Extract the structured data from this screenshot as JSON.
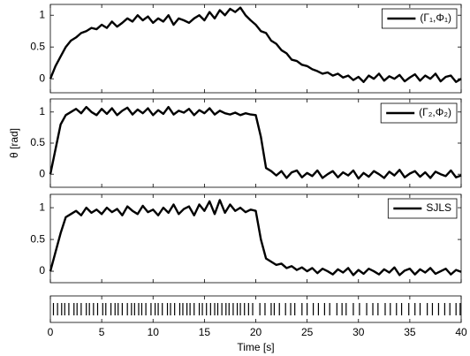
{
  "chart_data": [
    {
      "type": "line",
      "xlim": [
        0,
        40
      ],
      "ylim": [
        -0.22,
        1.17
      ],
      "yticks": [
        0,
        0.5,
        1
      ],
      "legend": "upper right",
      "x": [
        0,
        0.5,
        1,
        1.5,
        2,
        2.5,
        3,
        3.5,
        4,
        4.5,
        5,
        5.5,
        6,
        6.5,
        7,
        7.5,
        8,
        8.5,
        9,
        9.5,
        10,
        10.5,
        11,
        11.5,
        12,
        12.5,
        13,
        13.5,
        14,
        14.5,
        15,
        15.5,
        16,
        16.5,
        17,
        17.5,
        18,
        18.5,
        19,
        19.5,
        20,
        20.5,
        21,
        21.5,
        22,
        22.5,
        23,
        23.5,
        24,
        24.5,
        25,
        25.5,
        26,
        26.5,
        27,
        27.5,
        28,
        28.5,
        29,
        29.5,
        30,
        30.5,
        31,
        31.5,
        32,
        32.5,
        33,
        33.5,
        34,
        34.5,
        35,
        35.5,
        36,
        36.5,
        37,
        37.5,
        38,
        38.5,
        39,
        39.5,
        40
      ],
      "series": [
        {
          "name": "(Γ₁,Φ₁)",
          "color": "#000000",
          "values": [
            0,
            0.2,
            0.35,
            0.5,
            0.6,
            0.65,
            0.72,
            0.75,
            0.8,
            0.78,
            0.85,
            0.8,
            0.9,
            0.82,
            0.88,
            0.95,
            0.9,
            1.0,
            0.92,
            0.98,
            0.88,
            0.95,
            0.9,
            1.0,
            0.85,
            0.95,
            0.92,
            0.88,
            0.95,
            1.0,
            0.92,
            1.05,
            0.95,
            1.08,
            1.0,
            1.1,
            1.05,
            1.12,
            1.0,
            0.92,
            0.85,
            0.75,
            0.72,
            0.6,
            0.55,
            0.45,
            0.4,
            0.3,
            0.28,
            0.22,
            0.2,
            0.15,
            0.12,
            0.08,
            0.1,
            0.05,
            0.08,
            0.02,
            0.05,
            -0.02,
            0.03,
            -0.05,
            0.05,
            0.0,
            0.08,
            -0.03,
            0.04,
            0.0,
            0.06,
            -0.04,
            0.02,
            0.07,
            -0.03,
            0.05,
            0.0,
            0.08,
            -0.04,
            0.03,
            0.05,
            -0.05,
            0.0
          ]
        }
      ]
    },
    {
      "type": "line",
      "xlim": [
        0,
        40
      ],
      "ylim": [
        -0.21,
        1.21
      ],
      "yticks": [
        0,
        0.5,
        1
      ],
      "legend": "upper right",
      "ylabel": "θ [rad]",
      "x": [
        0,
        0.5,
        1,
        1.5,
        2,
        2.5,
        3,
        3.5,
        4,
        4.5,
        5,
        5.5,
        6,
        6.5,
        7,
        7.5,
        8,
        8.5,
        9,
        9.5,
        10,
        10.5,
        11,
        11.5,
        12,
        12.5,
        13,
        13.5,
        14,
        14.5,
        15,
        15.5,
        16,
        16.5,
        17,
        17.5,
        18,
        18.5,
        19,
        19.5,
        20,
        20.5,
        21,
        21.5,
        22,
        22.5,
        23,
        23.5,
        24,
        24.5,
        25,
        25.5,
        26,
        26.5,
        27,
        27.5,
        28,
        28.5,
        29,
        29.5,
        30,
        30.5,
        31,
        31.5,
        32,
        32.5,
        33,
        33.5,
        34,
        34.5,
        35,
        35.5,
        36,
        36.5,
        37,
        37.5,
        38,
        38.5,
        39,
        39.5,
        40
      ],
      "series": [
        {
          "name": "(Γ₂,Φ₂)",
          "color": "#000000",
          "values": [
            0,
            0.4,
            0.8,
            0.95,
            1.0,
            1.05,
            0.98,
            1.08,
            1.0,
            0.95,
            1.05,
            0.97,
            1.06,
            0.95,
            1.02,
            1.07,
            0.96,
            1.04,
            0.98,
            1.06,
            0.95,
            1.03,
            0.97,
            1.08,
            0.96,
            1.02,
            0.99,
            1.05,
            0.95,
            1.03,
            0.98,
            1.06,
            0.96,
            1.02,
            0.98,
            0.96,
            0.99,
            0.95,
            0.98,
            0.96,
            0.95,
            0.6,
            0.1,
            0.05,
            -0.02,
            0.05,
            -0.06,
            0.03,
            0.06,
            -0.05,
            0.02,
            -0.03,
            0.06,
            -0.06,
            0.0,
            0.05,
            -0.05,
            0.03,
            -0.02,
            0.06,
            -0.07,
            0.02,
            -0.04,
            0.05,
            0.0,
            -0.06,
            0.04,
            -0.02,
            0.07,
            -0.05,
            0.01,
            0.05,
            -0.04,
            0.03,
            -0.06,
            0.04,
            0.0,
            -0.03,
            0.06,
            -0.05,
            -0.02
          ]
        }
      ]
    },
    {
      "type": "line",
      "xlim": [
        0,
        40
      ],
      "ylim": [
        -0.18,
        1.21
      ],
      "yticks": [
        0,
        0.5,
        1
      ],
      "legend": "upper right",
      "x": [
        0,
        0.5,
        1,
        1.5,
        2,
        2.5,
        3,
        3.5,
        4,
        4.5,
        5,
        5.5,
        6,
        6.5,
        7,
        7.5,
        8,
        8.5,
        9,
        9.5,
        10,
        10.5,
        11,
        11.5,
        12,
        12.5,
        13,
        13.5,
        14,
        14.5,
        15,
        15.5,
        16,
        16.5,
        17,
        17.5,
        18,
        18.5,
        19,
        19.5,
        20,
        20.5,
        21,
        21.5,
        22,
        22.5,
        23,
        23.5,
        24,
        24.5,
        25,
        25.5,
        26,
        26.5,
        27,
        27.5,
        28,
        28.5,
        29,
        29.5,
        30,
        30.5,
        31,
        31.5,
        32,
        32.5,
        33,
        33.5,
        34,
        34.5,
        35,
        35.5,
        36,
        36.5,
        37,
        37.5,
        38,
        38.5,
        39,
        39.5,
        40
      ],
      "series": [
        {
          "name": "SJLS",
          "color": "#000000",
          "values": [
            0,
            0.3,
            0.6,
            0.85,
            0.9,
            0.95,
            0.88,
            1.0,
            0.92,
            0.97,
            0.9,
            1.0,
            0.93,
            0.98,
            0.88,
            1.02,
            0.95,
            0.9,
            1.03,
            0.93,
            0.97,
            0.88,
            1.0,
            0.92,
            1.05,
            0.9,
            0.98,
            1.02,
            0.88,
            1.05,
            0.95,
            1.1,
            0.9,
            1.12,
            0.92,
            1.05,
            0.95,
            1.0,
            0.93,
            0.97,
            0.95,
            0.5,
            0.2,
            0.15,
            0.1,
            0.12,
            0.05,
            0.08,
            0.02,
            0.06,
            0.0,
            0.05,
            -0.03,
            0.04,
            0.0,
            -0.05,
            0.03,
            -0.02,
            0.05,
            -0.06,
            0.02,
            -0.04,
            0.04,
            0.0,
            -0.05,
            0.03,
            -0.02,
            0.06,
            -0.06,
            0.01,
            0.04,
            -0.05,
            0.03,
            -0.02,
            0.05,
            -0.04,
            0.0,
            0.04,
            -0.05,
            0.02,
            -0.01
          ]
        }
      ]
    },
    {
      "type": "raster",
      "xlim": [
        0,
        40
      ],
      "xticks": [
        0,
        5,
        10,
        15,
        20,
        25,
        30,
        35,
        40
      ],
      "xlabel": "Time [s]",
      "color": "#000000",
      "x": [
        0.3,
        0.7,
        1.1,
        1.4,
        1.8,
        2.3,
        2.6,
        3.0,
        3.5,
        3.8,
        4.2,
        4.6,
        5.1,
        5.4,
        5.9,
        6.3,
        6.6,
        7.0,
        7.5,
        7.9,
        8.2,
        8.6,
        8.9,
        9.3,
        9.8,
        10.2,
        10.5,
        10.9,
        11.4,
        11.7,
        12.1,
        12.6,
        12.9,
        13.3,
        13.6,
        14.0,
        14.5,
        14.8,
        15.2,
        15.6,
        16.0,
        16.3,
        16.7,
        17.1,
        17.4,
        17.8,
        18.2,
        18.5,
        18.9,
        19.3,
        19.7,
        20.4,
        20.9,
        21.5,
        21.8,
        22.3,
        22.9,
        23.4,
        23.8,
        24.5,
        25.0,
        25.6,
        26.1,
        26.7,
        27.2,
        27.9,
        28.4,
        28.8,
        29.5,
        30.1,
        30.8,
        31.4,
        31.9,
        32.6,
        33.1,
        33.7,
        34.2,
        34.9,
        35.5,
        36.0,
        36.7,
        37.2,
        37.8,
        38.4,
        38.9,
        39.5,
        39.9
      ]
    }
  ]
}
